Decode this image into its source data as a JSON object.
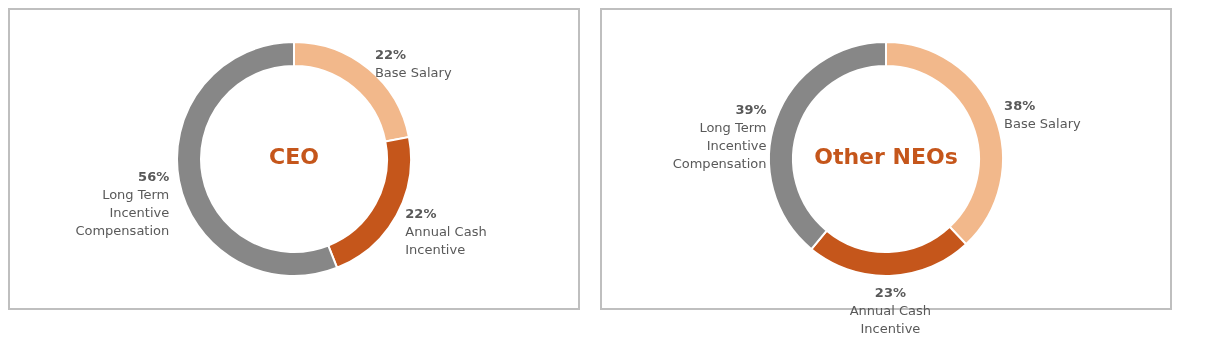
{
  "chart_data": [
    {
      "type": "donut",
      "title": "CEO",
      "categories": [
        "Base Salary",
        "Annual Cash Incentive",
        "Long Term Incentive Compensation"
      ],
      "values": [
        22,
        22,
        56
      ],
      "value_labels": [
        "22%",
        "22%",
        "56%"
      ],
      "colors": [
        "#f2b88b",
        "#c5561b",
        "#878787"
      ],
      "legend": false
    },
    {
      "type": "donut",
      "title": "Other NEOs",
      "categories": [
        "Base Salary",
        "Annual Cash Incentive",
        "Long Term Incentive Compensation"
      ],
      "values": [
        38,
        23,
        39
      ],
      "value_labels": [
        "38%",
        "23%",
        "39%"
      ],
      "colors": [
        "#f2b88b",
        "#c5561b",
        "#878787"
      ],
      "legend": false
    }
  ]
}
